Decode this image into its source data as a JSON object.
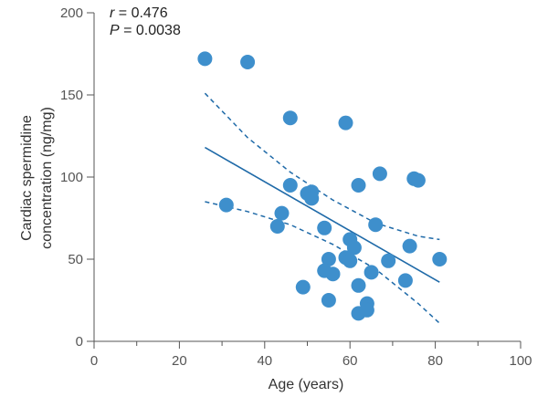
{
  "chart_data": {
    "type": "scatter",
    "xlabel": "Age (years)",
    "ylabel_lines": [
      "Cardiac spermidine",
      "concentration (ng/mg)"
    ],
    "xlim": [
      0,
      100
    ],
    "ylim": [
      0,
      200
    ],
    "xticks": [
      0,
      20,
      40,
      60,
      80,
      100
    ],
    "yticks": [
      0,
      50,
      100,
      150,
      200
    ],
    "xtick_labels": [
      "0",
      "20",
      "40",
      "60",
      "80",
      "100"
    ],
    "ytick_labels": [
      "0",
      "50",
      "100",
      "150",
      "200"
    ],
    "grid": false,
    "annotation": {
      "r_symbol": "r",
      "r_value": " = 0.476",
      "p_symbol": "P",
      "p_value": " = 0.0038"
    },
    "points": [
      {
        "x": 26,
        "y": 172
      },
      {
        "x": 36,
        "y": 170
      },
      {
        "x": 46,
        "y": 136
      },
      {
        "x": 59,
        "y": 133
      },
      {
        "x": 67,
        "y": 102
      },
      {
        "x": 75,
        "y": 99
      },
      {
        "x": 76,
        "y": 98
      },
      {
        "x": 46,
        "y": 95
      },
      {
        "x": 62,
        "y": 95
      },
      {
        "x": 50,
        "y": 90
      },
      {
        "x": 51,
        "y": 91
      },
      {
        "x": 51,
        "y": 87
      },
      {
        "x": 31,
        "y": 83
      },
      {
        "x": 44,
        "y": 78
      },
      {
        "x": 43,
        "y": 70
      },
      {
        "x": 54,
        "y": 69
      },
      {
        "x": 66,
        "y": 71
      },
      {
        "x": 60,
        "y": 62
      },
      {
        "x": 61,
        "y": 57
      },
      {
        "x": 74,
        "y": 58
      },
      {
        "x": 55,
        "y": 50
      },
      {
        "x": 59,
        "y": 51
      },
      {
        "x": 60,
        "y": 49
      },
      {
        "x": 69,
        "y": 49
      },
      {
        "x": 81,
        "y": 50
      },
      {
        "x": 54,
        "y": 43
      },
      {
        "x": 56,
        "y": 41
      },
      {
        "x": 65,
        "y": 42
      },
      {
        "x": 49,
        "y": 33
      },
      {
        "x": 62,
        "y": 34
      },
      {
        "x": 73,
        "y": 37
      },
      {
        "x": 55,
        "y": 25
      },
      {
        "x": 64,
        "y": 23
      },
      {
        "x": 62,
        "y": 17
      },
      {
        "x": 64,
        "y": 19
      }
    ],
    "regression_line": {
      "x": [
        26,
        81
      ],
      "y": [
        118,
        36
      ]
    },
    "ci_upper": {
      "x": [
        26,
        36,
        46,
        56,
        66,
        76,
        81
      ],
      "y": [
        151,
        124,
        103,
        86,
        72,
        64,
        62
      ]
    },
    "ci_lower": {
      "x": [
        26,
        36,
        46,
        56,
        66,
        76,
        81
      ],
      "y": [
        85,
        79,
        71,
        59,
        44,
        23,
        11
      ]
    },
    "colors": {
      "point": "#3e8fcc",
      "line": "#1f6aa8",
      "axis": "#555555",
      "text": "#333333"
    }
  }
}
